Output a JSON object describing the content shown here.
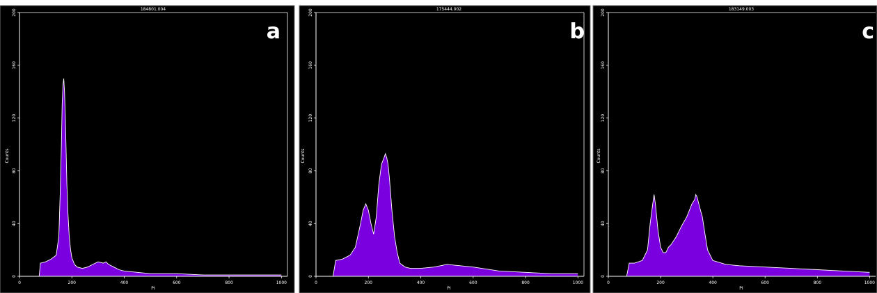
{
  "chart_data": [
    {
      "type": "area",
      "panel_letter": "a",
      "title": "184801.004",
      "xlabel": "PI",
      "ylabel": "Counts",
      "xlim": [
        0,
        1023
      ],
      "ylim": [
        0,
        200
      ],
      "xticks": [
        0,
        200,
        400,
        600,
        800,
        1000
      ],
      "yticks": [
        0,
        40,
        80,
        120,
        160,
        200
      ],
      "grid": false,
      "fill_color": "#7a00e0",
      "outline_color": "#ffffff",
      "background_color": "#000000",
      "x": [
        0,
        60,
        75,
        80,
        100,
        120,
        140,
        150,
        155,
        160,
        163,
        166,
        169,
        172,
        175,
        178,
        181,
        185,
        190,
        195,
        200,
        210,
        220,
        240,
        260,
        280,
        300,
        320,
        330,
        340,
        360,
        380,
        400,
        450,
        500,
        600,
        700,
        800,
        900,
        1000
      ],
      "y": [
        0,
        0,
        0,
        10,
        11,
        13,
        16,
        30,
        60,
        100,
        130,
        145,
        150,
        140,
        120,
        95,
        70,
        48,
        30,
        20,
        14,
        9,
        7,
        6,
        7,
        9,
        11,
        10,
        11,
        9,
        7,
        5,
        4,
        3,
        2,
        2,
        1,
        1,
        1,
        1
      ]
    },
    {
      "type": "area",
      "panel_letter": "b",
      "title": "175444.002",
      "xlabel": "PI",
      "ylabel": "Counts",
      "xlim": [
        0,
        1023
      ],
      "ylim": [
        0,
        200
      ],
      "xticks": [
        0,
        200,
        400,
        600,
        800,
        1000
      ],
      "yticks": [
        0,
        40,
        80,
        120,
        160,
        200
      ],
      "grid": false,
      "fill_color": "#7a00e0",
      "outline_color": "#ffffff",
      "background_color": "#000000",
      "x": [
        0,
        65,
        75,
        100,
        130,
        150,
        170,
        180,
        190,
        200,
        210,
        220,
        230,
        240,
        250,
        260,
        265,
        270,
        275,
        280,
        290,
        300,
        310,
        320,
        340,
        360,
        400,
        450,
        500,
        550,
        600,
        700,
        800,
        900,
        1000
      ],
      "y": [
        0,
        0,
        12,
        13,
        16,
        22,
        40,
        50,
        55,
        50,
        40,
        32,
        45,
        70,
        85,
        90,
        93,
        90,
        85,
        75,
        50,
        30,
        18,
        10,
        7,
        6,
        6,
        7,
        9,
        8,
        7,
        4,
        3,
        2,
        2
      ]
    },
    {
      "type": "area",
      "panel_letter": "c",
      "title": "183149.003",
      "xlabel": "PI",
      "ylabel": "Counts",
      "xlim": [
        0,
        1023
      ],
      "ylim": [
        0,
        200
      ],
      "xticks": [
        0,
        200,
        400,
        600,
        800,
        1000
      ],
      "yticks": [
        0,
        40,
        80,
        120,
        160,
        200
      ],
      "grid": false,
      "fill_color": "#7a00e0",
      "outline_color": "#ffffff",
      "background_color": "#000000",
      "x": [
        0,
        70,
        80,
        100,
        130,
        150,
        160,
        170,
        175,
        180,
        190,
        200,
        210,
        220,
        230,
        240,
        260,
        280,
        300,
        310,
        320,
        330,
        335,
        340,
        350,
        360,
        370,
        380,
        400,
        450,
        500,
        600,
        700,
        800,
        900,
        1000
      ],
      "y": [
        0,
        0,
        10,
        10,
        12,
        20,
        40,
        55,
        62,
        55,
        35,
        22,
        18,
        18,
        22,
        24,
        30,
        38,
        45,
        50,
        55,
        58,
        62,
        60,
        52,
        45,
        32,
        20,
        12,
        9,
        8,
        7,
        6,
        5,
        4,
        3
      ]
    }
  ]
}
